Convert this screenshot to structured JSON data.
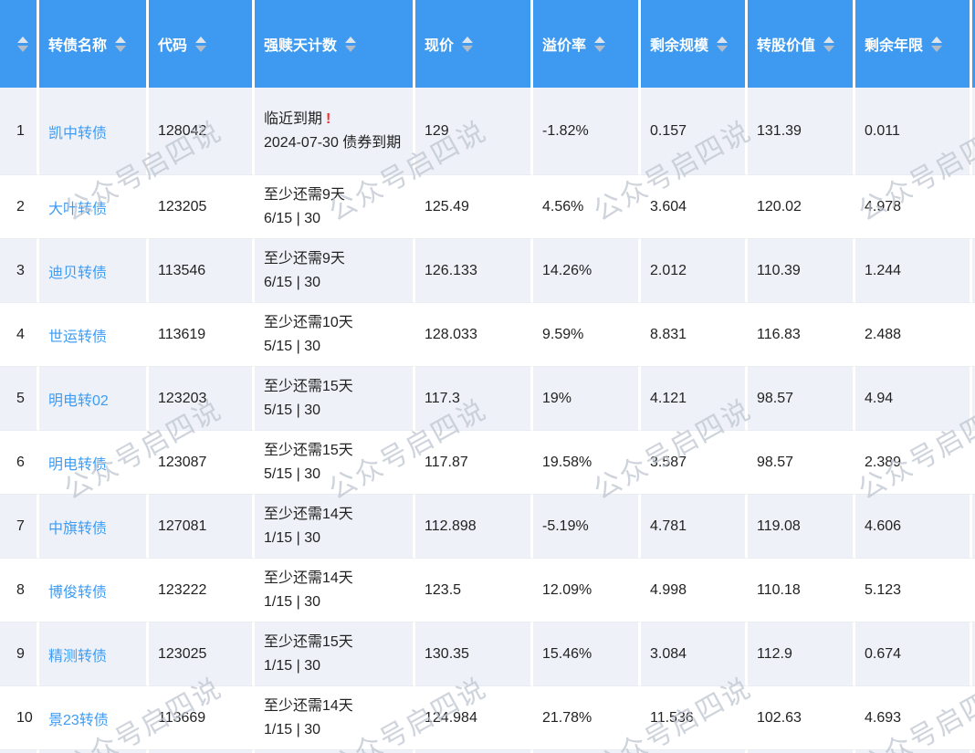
{
  "watermark": {
    "text": "公众号启四说"
  },
  "theme": {
    "header_bg": "#3E9AF0",
    "link_color": "#3E9CF3",
    "stripe_bg": "#EEF2F8",
    "alert_color": "#F52C2C"
  },
  "table": {
    "columns": [
      {
        "key": "index",
        "label": "",
        "sortable": false
      },
      {
        "key": "name",
        "label": "转债名称",
        "sortable": false
      },
      {
        "key": "code",
        "label": "代码",
        "sortable": false
      },
      {
        "key": "redemption",
        "label": "强赎天计数",
        "sortable": true
      },
      {
        "key": "price",
        "label": "现价",
        "sortable": true
      },
      {
        "key": "premium",
        "label": "溢价率",
        "sortable": true
      },
      {
        "key": "size",
        "label": "剩余规模",
        "sortable": true
      },
      {
        "key": "conv",
        "label": "转股价值",
        "sortable": true
      },
      {
        "key": "years",
        "label": "剩余年限",
        "sortable": true
      }
    ],
    "rows": [
      {
        "index": "1",
        "name": "凯中转债",
        "code": "128042",
        "redemption": {
          "line1": "临近到期",
          "alert": "!",
          "line2": "2024-07-30 债券到期"
        },
        "price": "129",
        "premium": "-1.82%",
        "size": "0.157",
        "conv": "131.39",
        "years": "0.011"
      },
      {
        "index": "2",
        "name": "大叶转债",
        "code": "123205",
        "redemption": {
          "line1": "至少还需9天",
          "line2": "6/15 | 30"
        },
        "price": "125.49",
        "premium": "4.56%",
        "size": "3.604",
        "conv": "120.02",
        "years": "4.978"
      },
      {
        "index": "3",
        "name": "迪贝转债",
        "code": "113546",
        "redemption": {
          "line1": "至少还需9天",
          "line2": "6/15 | 30"
        },
        "price": "126.133",
        "premium": "14.26%",
        "size": "2.012",
        "conv": "110.39",
        "years": "1.244"
      },
      {
        "index": "4",
        "name": "世运转债",
        "code": "113619",
        "redemption": {
          "line1": "至少还需10天",
          "line2": "5/15 | 30"
        },
        "price": "128.033",
        "premium": "9.59%",
        "size": "8.831",
        "conv": "116.83",
        "years": "2.488"
      },
      {
        "index": "5",
        "name": "明电转02",
        "code": "123203",
        "redemption": {
          "line1": "至少还需15天",
          "line2": "5/15 | 30"
        },
        "price": "117.3",
        "premium": "19%",
        "size": "4.121",
        "conv": "98.57",
        "years": "4.94"
      },
      {
        "index": "6",
        "name": "明电转债",
        "code": "123087",
        "redemption": {
          "line1": "至少还需15天",
          "line2": "5/15 | 30"
        },
        "price": "117.87",
        "premium": "19.58%",
        "size": "3.587",
        "conv": "98.57",
        "years": "2.389"
      },
      {
        "index": "7",
        "name": "中旗转债",
        "code": "127081",
        "redemption": {
          "line1": "至少还需14天",
          "line2": "1/15 | 30"
        },
        "price": "112.898",
        "premium": "-5.19%",
        "size": "4.781",
        "conv": "119.08",
        "years": "4.606"
      },
      {
        "index": "8",
        "name": "博俊转债",
        "code": "123222",
        "redemption": {
          "line1": "至少还需14天",
          "line2": "1/15 | 30"
        },
        "price": "123.5",
        "premium": "12.09%",
        "size": "4.998",
        "conv": "110.18",
        "years": "5.123"
      },
      {
        "index": "9",
        "name": "精测转债",
        "code": "123025",
        "redemption": {
          "line1": "至少还需15天",
          "line2": "1/15 | 30"
        },
        "price": "130.35",
        "premium": "15.46%",
        "size": "3.084",
        "conv": "112.9",
        "years": "0.674"
      },
      {
        "index": "10",
        "name": "景23转债",
        "code": "113669",
        "redemption": {
          "line1": "至少还需14天",
          "line2": "1/15 | 30"
        },
        "price": "124.984",
        "premium": "21.78%",
        "size": "11.536",
        "conv": "102.63",
        "years": "4.693"
      }
    ]
  }
}
